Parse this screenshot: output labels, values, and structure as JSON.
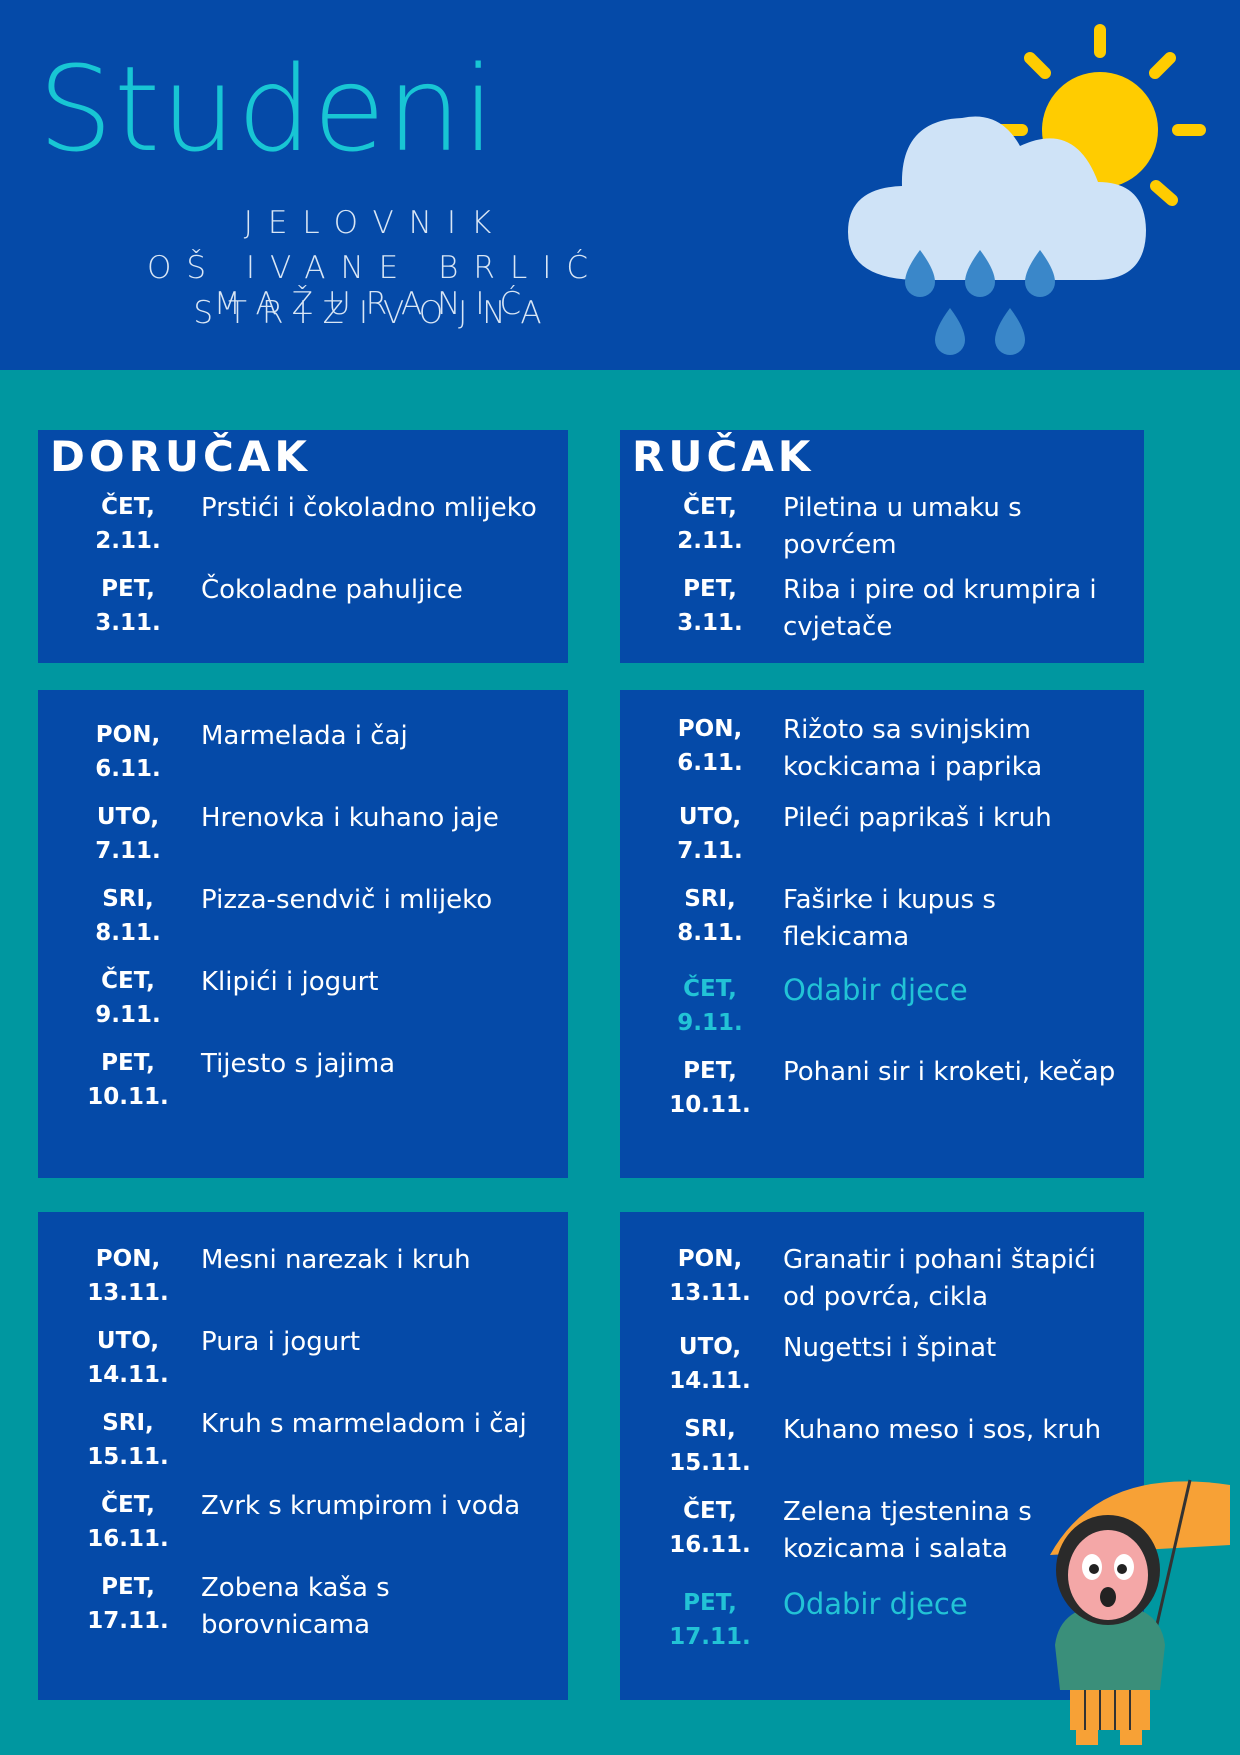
{
  "header": {
    "title": "Studeni",
    "line1": "JELOVNIK",
    "line2": "OŠ IVANE BRLIĆ MAŽURANIĆ",
    "line3": "STRIZIVOJNA"
  },
  "colors": {
    "background": "#0097a0",
    "panel": "#054aa8",
    "title": "#18c6d4",
    "highlight": "#22c3d6",
    "sun": "#ffcc00",
    "cloud": "#cfe3f7",
    "rain": "#3a87c9"
  },
  "icons": [
    "sun-icon",
    "cloud-icon",
    "raindrop-icon",
    "girl-with-umbrella-illustration"
  ],
  "dorucak": {
    "title": "DORUČAK",
    "week1": [
      {
        "day": "ČET,",
        "date": "2.11.",
        "meal": "Prstići i čokoladno mlijeko"
      },
      {
        "day": "PET,",
        "date": "3.11.",
        "meal": "Čokoladne pahuljice"
      }
    ],
    "week2": [
      {
        "day": "PON,",
        "date": "6.11.",
        "meal": "Marmelada i čaj"
      },
      {
        "day": "UTO,",
        "date": "7.11.",
        "meal": "Hrenovka i kuhano jaje"
      },
      {
        "day": "SRI,",
        "date": "8.11.",
        "meal": "Pizza-sendvič i mlijeko"
      },
      {
        "day": "ČET,",
        "date": "9.11.",
        "meal": "Klipići i jogurt"
      },
      {
        "day": "PET,",
        "date": "10.11.",
        "meal": "Tijesto s jajima"
      }
    ],
    "week3": [
      {
        "day": "PON,",
        "date": "13.11.",
        "meal": "Mesni narezak i kruh"
      },
      {
        "day": "UTO,",
        "date": "14.11.",
        "meal": "Pura i jogurt"
      },
      {
        "day": "SRI,",
        "date": "15.11.",
        "meal": "Kruh s marmeladom i čaj"
      },
      {
        "day": "ČET,",
        "date": "16.11.",
        "meal": "Zvrk s krumpirom i voda"
      },
      {
        "day": "PET,",
        "date": "17.11.",
        "meal": "Zobena kaša s borovnicama"
      }
    ]
  },
  "rucak": {
    "title": "RUČAK",
    "week1": [
      {
        "day": "ČET,",
        "date": "2.11.",
        "meal": "Piletina u umaku s povrćem"
      },
      {
        "day": "PET,",
        "date": "3.11.",
        "meal": "Riba i pire od krumpira i cvjetače"
      }
    ],
    "week2": [
      {
        "day": "PON,",
        "date": "6.11.",
        "meal": "Rižoto sa svinjskim kockicama i paprika"
      },
      {
        "day": "UTO,",
        "date": "7.11.",
        "meal": "Pileći paprikaš i kruh"
      },
      {
        "day": "SRI,",
        "date": "8.11.",
        "meal": "Faširke i kupus s flekicama"
      },
      {
        "day": "ČET,",
        "date": "9.11.",
        "meal": "Odabir djece"
      },
      {
        "day": "PET,",
        "date": "10.11.",
        "meal": "Pohani sir i kroketi, kečap"
      }
    ],
    "week3": [
      {
        "day": "PON,",
        "date": "13.11.",
        "meal": "Granatir i pohani štapići od povrća, cikla"
      },
      {
        "day": "UTO,",
        "date": "14.11.",
        "meal": "Nugettsi i špinat"
      },
      {
        "day": "SRI,",
        "date": "15.11.",
        "meal": "Kuhano meso i sos, kruh"
      },
      {
        "day": "ČET,",
        "date": "16.11.",
        "meal": "Zelena tjestenina s kozicama i salata"
      },
      {
        "day": "PET,",
        "date": "17.11.",
        "meal": "Odabir djece"
      }
    ]
  }
}
